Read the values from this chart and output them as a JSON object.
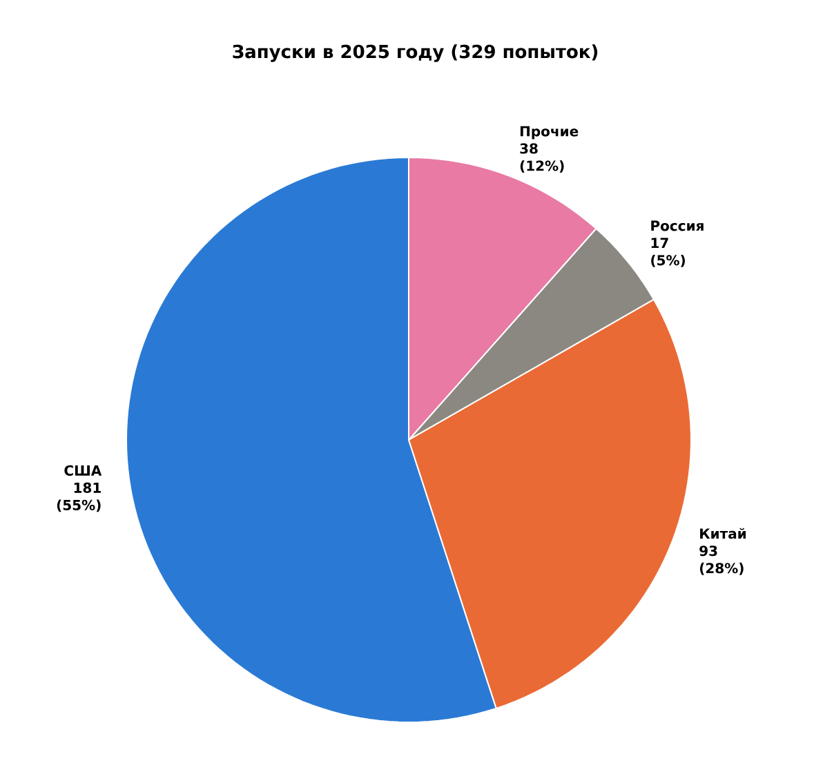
{
  "chart_data": {
    "type": "pie",
    "title": "Запуски в 2025 году (329 попыток)",
    "categories": [
      "США",
      "Китай",
      "Россия",
      "Прочие"
    ],
    "values": [
      181,
      93,
      17,
      38
    ],
    "value_labels": [
      "181 (55%)",
      "93 (28%)",
      "17 (5%)",
      "38 (12%)"
    ],
    "colors": [
      "#2a7ad5",
      "#ea6a35",
      "#8a8880",
      "#e87aa4"
    ]
  }
}
